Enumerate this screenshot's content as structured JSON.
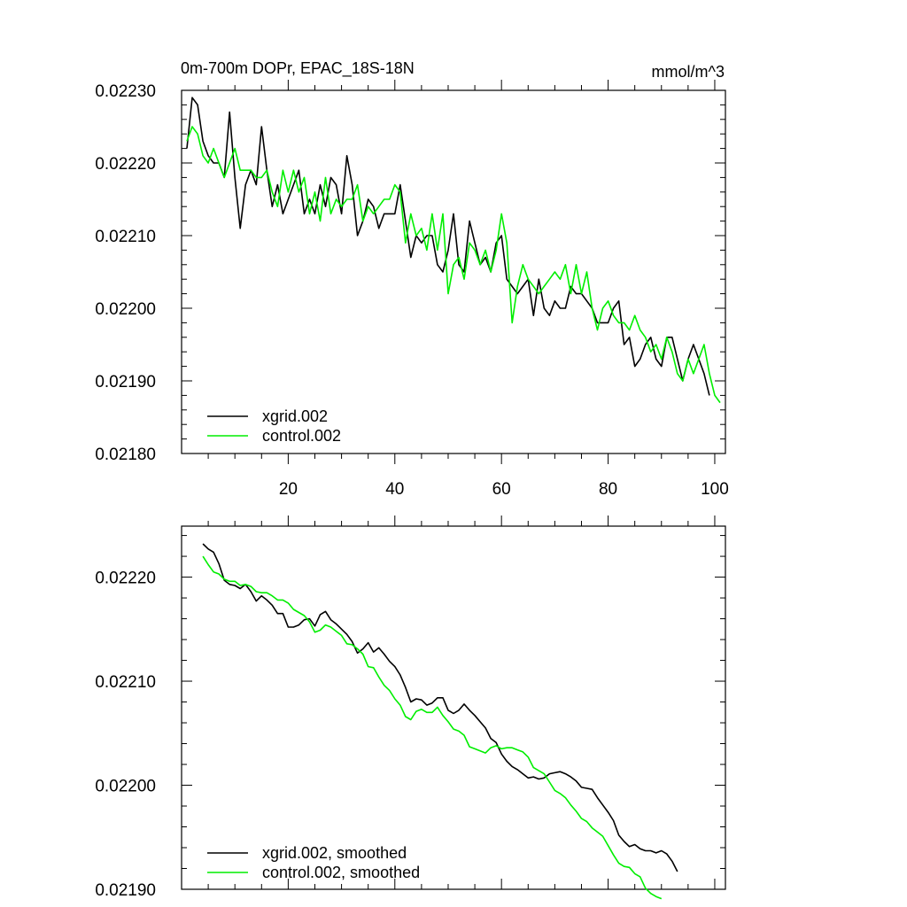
{
  "figure": {
    "title": "0m-700m DOPr, EPAC_18S-18N",
    "units": "mmol/m^3"
  },
  "chart_data": [
    {
      "type": "line",
      "name": "top",
      "title": "0m-700m DOPr, EPAC_18S-18N",
      "units_label": "mmol/m^3",
      "xlim": [
        0,
        102
      ],
      "ylim": [
        0.0218,
        0.0223
      ],
      "xticks": [
        20,
        40,
        60,
        80,
        100
      ],
      "xtick_labels": [
        "20",
        "40",
        "60",
        "80",
        "100"
      ],
      "yticks": [
        0.0218,
        0.0219,
        0.022,
        0.0221,
        0.0222,
        0.0223
      ],
      "ytick_labels": [
        "0.02180",
        "0.02190",
        "0.02200",
        "0.02210",
        "0.02220",
        "0.02230"
      ],
      "x_start": 1,
      "series": [
        {
          "name": "xgrid.002",
          "color": "#000000",
          "values": [
            0.02222,
            0.02229,
            0.02228,
            0.02223,
            0.02221,
            0.0222,
            0.0222,
            0.02218,
            0.02227,
            0.02218,
            0.02211,
            0.02217,
            0.02219,
            0.02217,
            0.02225,
            0.02219,
            0.02214,
            0.02217,
            0.02213,
            0.02215,
            0.02217,
            0.02219,
            0.02213,
            0.02215,
            0.02213,
            0.02217,
            0.02214,
            0.02218,
            0.02217,
            0.02213,
            0.02221,
            0.02217,
            0.0221,
            0.02212,
            0.02215,
            0.02214,
            0.02211,
            0.02213,
            0.02213,
            0.02213,
            0.02217,
            0.02212,
            0.02207,
            0.0221,
            0.02209,
            0.0221,
            0.0221,
            0.02206,
            0.02205,
            0.02208,
            0.02213,
            0.02206,
            0.02205,
            0.02212,
            0.02209,
            0.02206,
            0.02207,
            0.02205,
            0.02209,
            0.0221,
            0.02204,
            0.02203,
            0.02202,
            0.02203,
            0.02204,
            0.02199,
            0.02204,
            0.022,
            0.02199,
            0.02201,
            0.022,
            0.022,
            0.02203,
            0.02202,
            0.02202,
            0.02201,
            0.022,
            0.02198,
            0.02198,
            0.02198,
            0.022,
            0.02201,
            0.02195,
            0.02196,
            0.02192,
            0.02193,
            0.02195,
            0.02196,
            0.02193,
            0.02192,
            0.02196,
            0.02196,
            0.02193,
            0.0219,
            0.02193,
            0.02195,
            0.02193,
            0.02191,
            0.02188
          ]
        },
        {
          "name": "control.002",
          "color": "#00ee00",
          "values": [
            0.02223,
            0.02225,
            0.02224,
            0.02221,
            0.0222,
            0.02222,
            0.0222,
            0.02218,
            0.0222,
            0.02222,
            0.02219,
            0.02219,
            0.02219,
            0.02218,
            0.02218,
            0.02219,
            0.02216,
            0.02214,
            0.02219,
            0.02216,
            0.02219,
            0.02216,
            0.02218,
            0.02213,
            0.02216,
            0.02212,
            0.02218,
            0.02213,
            0.02215,
            0.02214,
            0.02215,
            0.02215,
            0.02217,
            0.02212,
            0.02214,
            0.02213,
            0.02214,
            0.02215,
            0.02215,
            0.02217,
            0.02216,
            0.02209,
            0.02213,
            0.0221,
            0.02211,
            0.02208,
            0.02213,
            0.02208,
            0.02213,
            0.02202,
            0.02206,
            0.02207,
            0.02204,
            0.02209,
            0.02208,
            0.02206,
            0.02208,
            0.02205,
            0.02208,
            0.02213,
            0.02209,
            0.02198,
            0.02203,
            0.02206,
            0.02204,
            0.02203,
            0.02202,
            0.02203,
            0.02204,
            0.02205,
            0.02204,
            0.02206,
            0.02202,
            0.02206,
            0.02202,
            0.02205,
            0.022,
            0.02197,
            0.022,
            0.02201,
            0.02199,
            0.02198,
            0.02198,
            0.02197,
            0.02199,
            0.02197,
            0.02196,
            0.02194,
            0.02195,
            0.02193,
            0.02196,
            0.02194,
            0.02191,
            0.0219,
            0.02193,
            0.02191,
            0.02193,
            0.02195,
            0.02191,
            0.02188,
            0.02187
          ]
        }
      ]
    },
    {
      "type": "line",
      "name": "bottom",
      "xlim": [
        0,
        102
      ],
      "ylim": [
        0.0219,
        0.022249
      ],
      "xticks": [
        20,
        40,
        60,
        80,
        100
      ],
      "yticks": [
        0.0219,
        0.022,
        0.0221,
        0.0222
      ],
      "ytick_labels": [
        "0.02190",
        "0.02200",
        "0.02210",
        "0.02220"
      ],
      "x_start": 4,
      "series": [
        {
          "name": "xgrid.002, smoothed",
          "color": "#000000",
          "values": [
            0.022232,
            0.022227,
            0.022224,
            0.022213,
            0.022197,
            0.022193,
            0.022192,
            0.022189,
            0.022193,
            0.022186,
            0.022177,
            0.022182,
            0.022178,
            0.022173,
            0.022165,
            0.022165,
            0.022152,
            0.022152,
            0.022154,
            0.022159,
            0.02216,
            0.022153,
            0.022164,
            0.022167,
            0.022159,
            0.022155,
            0.02215,
            0.022145,
            0.022138,
            0.022127,
            0.022131,
            0.022137,
            0.022128,
            0.022132,
            0.022126,
            0.022119,
            0.022114,
            0.022106,
            0.022094,
            0.02208,
            0.022083,
            0.022082,
            0.022077,
            0.022079,
            0.022084,
            0.022084,
            0.022072,
            0.022069,
            0.022072,
            0.022078,
            0.022072,
            0.022067,
            0.022061,
            0.022055,
            0.022045,
            0.022041,
            0.02203,
            0.022023,
            0.022018,
            0.022015,
            0.022011,
            0.022007,
            0.022008,
            0.022006,
            0.022007,
            0.022011,
            0.022012,
            0.022013,
            0.022011,
            0.022008,
            0.022004,
            0.021998,
            0.021997,
            0.021996,
            0.021988,
            0.021981,
            0.021974,
            0.021966,
            0.021952,
            0.021946,
            0.021941,
            0.021943,
            0.021939,
            0.021937,
            0.021937,
            0.021935,
            0.021937,
            0.021934,
            0.021927,
            0.021917
          ]
        },
        {
          "name": "control.002, smoothed",
          "color": "#00ee00",
          "values": [
            0.02222,
            0.022212,
            0.022205,
            0.022203,
            0.022198,
            0.022196,
            0.022196,
            0.022192,
            0.022193,
            0.022191,
            0.022186,
            0.022185,
            0.022185,
            0.022182,
            0.022178,
            0.022178,
            0.022175,
            0.022169,
            0.022166,
            0.022163,
            0.022157,
            0.022147,
            0.022149,
            0.022154,
            0.022152,
            0.022148,
            0.022144,
            0.022136,
            0.022135,
            0.022131,
            0.022126,
            0.022114,
            0.022113,
            0.022104,
            0.022096,
            0.022091,
            0.022083,
            0.022077,
            0.022066,
            0.022063,
            0.022071,
            0.022073,
            0.02207,
            0.02207,
            0.022075,
            0.022067,
            0.022061,
            0.022054,
            0.022052,
            0.022048,
            0.022037,
            0.022035,
            0.022033,
            0.022031,
            0.022036,
            0.022038,
            0.022035,
            0.022036,
            0.022036,
            0.022034,
            0.022032,
            0.022027,
            0.022017,
            0.022014,
            0.022011,
            0.022003,
            0.021995,
            0.021992,
            0.021988,
            0.021981,
            0.021975,
            0.021968,
            0.021965,
            0.021959,
            0.021955,
            0.021951,
            0.021942,
            0.021933,
            0.021925,
            0.021922,
            0.021921,
            0.021915,
            0.021912,
            0.021901,
            0.021896,
            0.021893,
            0.021891
          ]
        }
      ]
    }
  ]
}
